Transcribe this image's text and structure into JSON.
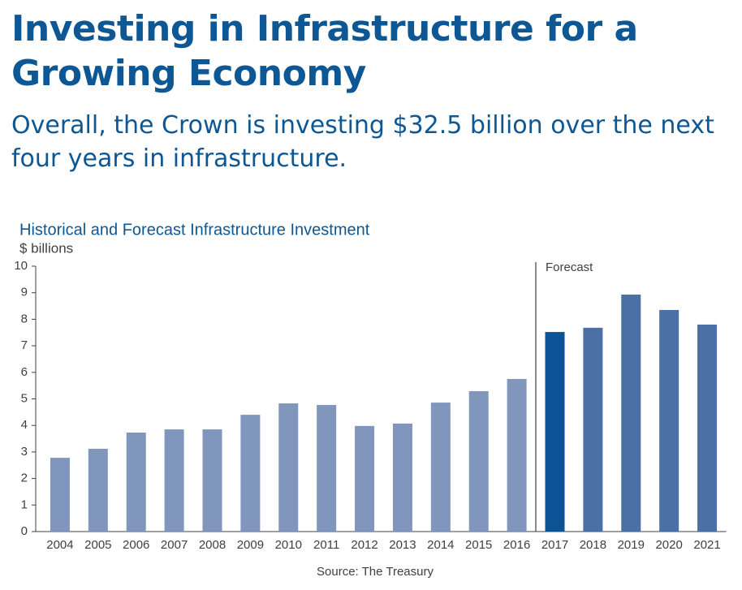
{
  "header": {
    "title": "Investing in Infrastructure for a Growing Economy",
    "subtitle": "Overall, the Crown is investing $32.5 billion over the next four years in infrastructure."
  },
  "chart_data": {
    "type": "bar",
    "title": "Historical and Forecast Infrastructure Investment",
    "y_label": "$ billions",
    "annotation": "Forecast",
    "source": "Source: The Treasury",
    "categories": [
      "2004",
      "2005",
      "2006",
      "2007",
      "2008",
      "2009",
      "2010",
      "2011",
      "2012",
      "2013",
      "2014",
      "2015",
      "2016",
      "2017",
      "2018",
      "2019",
      "2020",
      "2021"
    ],
    "values": [
      2.78,
      3.12,
      3.73,
      3.85,
      3.85,
      4.4,
      4.83,
      4.77,
      3.98,
      4.07,
      4.86,
      5.29,
      5.75,
      7.52,
      7.68,
      8.93,
      8.35,
      7.8
    ],
    "colors": [
      "#8096bd",
      "#8096bd",
      "#8096bd",
      "#8096bd",
      "#8096bd",
      "#8096bd",
      "#8096bd",
      "#8096bd",
      "#8096bd",
      "#8096bd",
      "#8096bd",
      "#8096bd",
      "#8096bd",
      "#0b5394",
      "#4a70a6",
      "#4a70a6",
      "#4a70a6",
      "#4a70a6"
    ],
    "ylim": [
      0,
      10
    ],
    "yticks": [
      0,
      1,
      2,
      3,
      4,
      5,
      6,
      7,
      8,
      9,
      10
    ],
    "grid": false
  }
}
